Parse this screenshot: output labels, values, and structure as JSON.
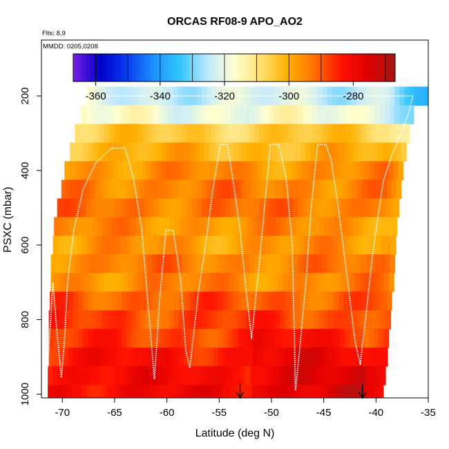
{
  "chart_data": {
    "type": "heatmap",
    "title": "ORCAS RF08-9 APO_AO2",
    "notes": [
      "Flts: 8,9",
      "MMDD: 0205,0208"
    ],
    "xlabel": "Latitude (deg N)",
    "ylabel": "PSXC (mbar)",
    "xlim": [
      -72,
      -35
    ],
    "ylim": [
      1010,
      50
    ],
    "x_ticks": [
      -70,
      -65,
      -60,
      -55,
      -50,
      -45,
      -40,
      -35
    ],
    "y_ticks": [
      200,
      400,
      600,
      800,
      1000
    ],
    "colorbar": {
      "range": [
        -367,
        -267
      ],
      "ticks": [
        -360,
        -340,
        -320,
        -300,
        -280
      ],
      "colors": [
        "#7a1ee8",
        "#0000c8",
        "#0a3cf0",
        "#1e90ff",
        "#33c6ff",
        "#bfe8ff",
        "#ffffd0",
        "#ffe070",
        "#ffb000",
        "#ff7000",
        "#ff1000",
        "#e00000",
        "#a01818"
      ]
    },
    "pressure_levels": [
      {
        "p": 200,
        "lat_start": -67.7,
        "lat_end": -35.0,
        "value": -323
      },
      {
        "p": 250,
        "lat_start": -68.2,
        "lat_end": -36.4,
        "value": -318
      },
      {
        "p": 300,
        "lat_start": -68.8,
        "lat_end": -36.8,
        "value": -305
      },
      {
        "p": 350,
        "lat_start": -69.3,
        "lat_end": -37.1,
        "value": -301
      },
      {
        "p": 400,
        "lat_start": -69.8,
        "lat_end": -37.4,
        "value": -296
      },
      {
        "p": 450,
        "lat_start": -70.1,
        "lat_end": -37.6,
        "value": -294
      },
      {
        "p": 500,
        "lat_start": -70.5,
        "lat_end": -37.8,
        "value": -293
      },
      {
        "p": 550,
        "lat_start": -70.8,
        "lat_end": -38.0,
        "value": -296
      },
      {
        "p": 600,
        "lat_start": -70.9,
        "lat_end": -38.1,
        "value": -297
      },
      {
        "p": 650,
        "lat_start": -71.1,
        "lat_end": -38.2,
        "value": -294
      },
      {
        "p": 700,
        "lat_start": -71.1,
        "lat_end": -38.3,
        "value": -295
      },
      {
        "p": 750,
        "lat_start": -71.2,
        "lat_end": -38.5,
        "value": -290
      },
      {
        "p": 800,
        "lat_start": -71.3,
        "lat_end": -38.6,
        "value": -288
      },
      {
        "p": 850,
        "lat_start": -71.3,
        "lat_end": -38.8,
        "value": -287
      },
      {
        "p": 900,
        "lat_start": -71.3,
        "lat_end": -38.9,
        "value": -283
      },
      {
        "p": 950,
        "lat_start": -71.4,
        "lat_end": -39.1,
        "value": -281
      },
      {
        "p": 1000,
        "lat_start": -71.4,
        "lat_end": -39.3,
        "value": -280
      }
    ],
    "flight_track": [
      [
        -67.7,
        200
      ],
      [
        -64.5,
        200
      ],
      [
        -63.0,
        200
      ],
      [
        -62.0,
        200
      ],
      [
        -61.5,
        200
      ],
      [
        -59.0,
        200
      ],
      [
        -56.0,
        200
      ],
      [
        -52.0,
        200
      ],
      [
        -48.0,
        200
      ],
      [
        -44.0,
        200
      ],
      [
        -39.0,
        200
      ],
      [
        -36.5,
        200
      ],
      [
        -36.8,
        240
      ],
      [
        -37.6,
        300
      ],
      [
        -38.5,
        360
      ],
      [
        -39.3,
        430
      ],
      [
        -39.8,
        520
      ],
      [
        -40.3,
        620
      ],
      [
        -40.7,
        720
      ],
      [
        -41.0,
        800
      ],
      [
        -41.3,
        870
      ],
      [
        -41.5,
        920
      ],
      [
        -42.0,
        860
      ],
      [
        -42.7,
        700
      ],
      [
        -43.6,
        500
      ],
      [
        -44.3,
        370
      ],
      [
        -44.8,
        330
      ],
      [
        -45.6,
        330
      ],
      [
        -46.2,
        500
      ],
      [
        -46.7,
        700
      ],
      [
        -47.3,
        880
      ],
      [
        -47.7,
        990
      ],
      [
        -48.0,
        600
      ],
      [
        -48.6,
        420
      ],
      [
        -49.3,
        330
      ],
      [
        -50.1,
        330
      ],
      [
        -50.6,
        480
      ],
      [
        -51.2,
        660
      ],
      [
        -51.9,
        850
      ],
      [
        -52.5,
        700
      ],
      [
        -53.0,
        560
      ],
      [
        -53.6,
        440
      ],
      [
        -54.2,
        330
      ],
      [
        -54.9,
        330
      ],
      [
        -55.6,
        450
      ],
      [
        -56.3,
        600
      ],
      [
        -57.0,
        730
      ],
      [
        -57.8,
        930
      ],
      [
        -58.2,
        880
      ],
      [
        -58.7,
        690
      ],
      [
        -59.4,
        560
      ],
      [
        -60.1,
        560
      ],
      [
        -60.7,
        750
      ],
      [
        -61.2,
        960
      ],
      [
        -61.8,
        760
      ],
      [
        -62.4,
        560
      ],
      [
        -63.2,
        420
      ],
      [
        -64.0,
        340
      ],
      [
        -65.3,
        340
      ],
      [
        -66.8,
        380
      ],
      [
        -68.0,
        450
      ],
      [
        -68.9,
        560
      ],
      [
        -69.5,
        700
      ],
      [
        -69.8,
        860
      ],
      [
        -70.1,
        955
      ],
      [
        -70.5,
        840
      ],
      [
        -70.9,
        700
      ],
      [
        -71.3,
        880
      ],
      [
        -71.5,
        955
      ]
    ],
    "arrows_lat": [
      -53.0,
      -41.3
    ]
  }
}
